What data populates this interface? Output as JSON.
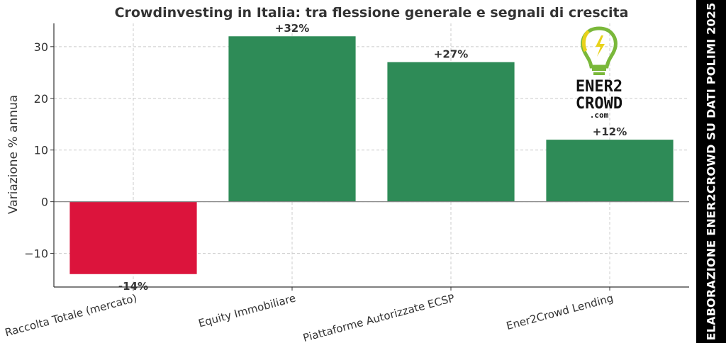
{
  "chart_data": {
    "type": "bar",
    "title": "Crowdinvesting in Italia: tra flessione generale e segnali di crescita",
    "xlabel": "",
    "ylabel": "Variazione % annua",
    "categories": [
      "Raccolta Totale (mercato)",
      "Equity Immobiliare",
      "Piattaforme Autorizzate ECSP",
      "Ener2Crowd Lending"
    ],
    "values": [
      -14,
      32,
      27,
      12
    ],
    "data_labels": [
      "-14%",
      "+32%",
      "+27%",
      "+12%"
    ],
    "ylim": [
      -16.5,
      34.5
    ],
    "yticks": [
      -10,
      0,
      10,
      20,
      30
    ],
    "ytick_labels": [
      "−10",
      "0",
      "10",
      "20",
      "30"
    ],
    "grid": true,
    "colors": {
      "negative": "#dc143c",
      "positive": "#2e8b57"
    }
  },
  "side_caption": "ELABORAZIONE ENER2CROWD SU DATI POLIMI 2025",
  "logo": {
    "line1": "ENER2",
    "line2": "CROWD",
    "line3": ".com"
  }
}
